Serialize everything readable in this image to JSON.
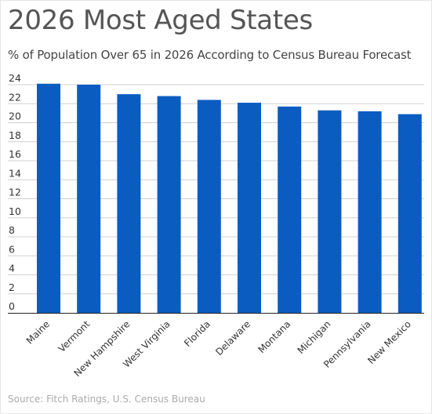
{
  "title": "2026 Most Aged States",
  "subtitle": "% of Population Over 65 in 2026 According to Census Bureau Forecast",
  "source": "Source: Fitch Ratings, U.S. Census Bureau",
  "colors": {
    "bar": "#0a5cc1",
    "grid": "#d0d0d0",
    "axis": "#222222"
  },
  "chart_data": {
    "type": "bar",
    "title": "2026 Most Aged States",
    "subtitle": "% of Population Over 65 in 2026 According to Census Bureau Forecast",
    "categories": [
      "Maine",
      "Vermont",
      "New Hampshire",
      "West Virginia",
      "Florida",
      "Delaware",
      "Montana",
      "Michigan",
      "Pennsylvania",
      "New Mexico"
    ],
    "values": [
      24.1,
      24.0,
      23.0,
      22.8,
      22.4,
      22.1,
      21.7,
      21.3,
      21.2,
      20.9
    ],
    "yticks": [
      0,
      2,
      4,
      6,
      8,
      10,
      12,
      14,
      16,
      18,
      20,
      22,
      24
    ],
    "ylim": [
      0,
      24
    ],
    "grid": true,
    "legend": "none"
  }
}
